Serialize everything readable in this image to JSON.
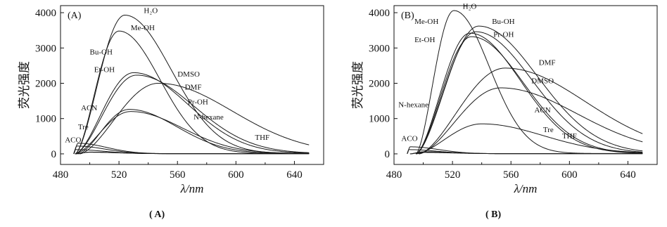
{
  "chart_data": [
    {
      "type": "line",
      "panel_tag": "(A)",
      "caption": "( A)",
      "xlabel": "λ/nm",
      "ylabel": "荧光强度",
      "xlim": [
        480,
        660
      ],
      "ylim": [
        -300,
        4200
      ],
      "xticks": [
        480,
        520,
        560,
        600,
        640
      ],
      "yticks": [
        0,
        1000,
        2000,
        3000,
        4000
      ],
      "series": [
        {
          "name": "H₂O",
          "start": 490,
          "peak_x": 524,
          "peak_y": 3930,
          "end_y": 10
        },
        {
          "name": "Me-OH",
          "start": 490,
          "peak_x": 520,
          "peak_y": 3480,
          "end_y": 10
        },
        {
          "name": "Bu-OH",
          "start": 490,
          "peak_x": 530,
          "peak_y": 2300,
          "end_y": 10
        },
        {
          "name": "Et-OH",
          "start": 490,
          "peak_x": 532,
          "peak_y": 2230,
          "end_y": 10
        },
        {
          "name": "DMSO",
          "start": 493,
          "peak_x": 547,
          "peak_y": 2000,
          "end_y": 10
        },
        {
          "name": "DMF",
          "start": 492,
          "peak_x": 527,
          "peak_y": 1260,
          "end_y": 10
        },
        {
          "name": "Pr-OH",
          "start": 490,
          "peak_x": 528,
          "peak_y": 1200,
          "end_y": 10
        },
        {
          "name": "N-hexane",
          "start": 490,
          "peak_x": 500,
          "peak_y": 50,
          "end_y": 5
        },
        {
          "name": "THF",
          "start": 490,
          "peak_x": 500,
          "peak_y": 45,
          "end_y": 5
        },
        {
          "name": "ACN",
          "start": 489,
          "peak_x": 492,
          "peak_y": 300,
          "end_y": 5
        },
        {
          "name": "Tre",
          "start": 489,
          "peak_x": 491,
          "peak_y": 220,
          "end_y": 5
        },
        {
          "name": "ACO",
          "start": 489,
          "peak_x": 490,
          "peak_y": 120,
          "end_y": 5
        }
      ],
      "labels": [
        {
          "text": "H₂O",
          "x": 537,
          "y": 3990
        },
        {
          "text": "Me-OH",
          "x": 528,
          "y": 3500
        },
        {
          "text": "Bu-OH",
          "x": 500,
          "y": 2820
        },
        {
          "text": "Et-OH",
          "x": 503,
          "y": 2320
        },
        {
          "text": "DMSO",
          "x": 560,
          "y": 2190
        },
        {
          "text": "DMF",
          "x": 565,
          "y": 1820
        },
        {
          "text": "Pr-OH",
          "x": 567,
          "y": 1400
        },
        {
          "text": "N-hexane",
          "x": 571,
          "y": 970
        },
        {
          "text": "THF",
          "x": 613,
          "y": 400
        },
        {
          "text": "ACN",
          "x": 494,
          "y": 1230
        },
        {
          "text": "Tre",
          "x": 492,
          "y": 700
        },
        {
          "text": "ACO",
          "x": 483,
          "y": 330
        }
      ]
    },
    {
      "type": "line",
      "panel_tag": "(B)",
      "caption": "( B)",
      "xlabel": "λ/nm",
      "ylabel": "荧光强度",
      "xlim": [
        480,
        660
      ],
      "ylim": [
        -300,
        4200
      ],
      "xticks": [
        480,
        520,
        560,
        600,
        640
      ],
      "yticks": [
        0,
        1000,
        2000,
        3000,
        4000
      ],
      "series": [
        {
          "name": "H₂O",
          "start": 495,
          "peak_x": 521,
          "peak_y": 4060,
          "end_y": 10
        },
        {
          "name": "Bu-OH",
          "start": 495,
          "peak_x": 538,
          "peak_y": 3620,
          "end_y": 10
        },
        {
          "name": "Me-OH",
          "start": 495,
          "peak_x": 532,
          "peak_y": 3420,
          "end_y": 10
        },
        {
          "name": "Pr-OH",
          "start": 495,
          "peak_x": 536,
          "peak_y": 3460,
          "end_y": 10
        },
        {
          "name": "Et-OH",
          "start": 495,
          "peak_x": 533,
          "peak_y": 3320,
          "end_y": 10
        },
        {
          "name": "DMF",
          "start": 497,
          "peak_x": 556,
          "peak_y": 2430,
          "end_y": 10
        },
        {
          "name": "DMSO",
          "start": 497,
          "peak_x": 553,
          "peak_y": 1870,
          "end_y": 10
        },
        {
          "name": "ACN",
          "start": 495,
          "peak_x": 540,
          "peak_y": 850,
          "end_y": 10
        },
        {
          "name": "Tre",
          "start": 491,
          "peak_x": 500,
          "peak_y": 60,
          "end_y": 5
        },
        {
          "name": "THF",
          "start": 491,
          "peak_x": 500,
          "peak_y": 40,
          "end_y": 5
        },
        {
          "name": "N-hexane",
          "start": 489,
          "peak_x": 491,
          "peak_y": 200,
          "end_y": 5
        },
        {
          "name": "ACO",
          "start": 489,
          "peak_x": 490,
          "peak_y": 120,
          "end_y": 5
        }
      ],
      "labels": [
        {
          "text": "H₂O",
          "x": 527,
          "y": 4110
        },
        {
          "text": "Me-OH",
          "x": 494,
          "y": 3680
        },
        {
          "text": "Bu-OH",
          "x": 547,
          "y": 3680
        },
        {
          "text": "Pr-OH",
          "x": 548,
          "y": 3310
        },
        {
          "text": "Et-OH",
          "x": 494,
          "y": 3160
        },
        {
          "text": "DMF",
          "x": 579,
          "y": 2520
        },
        {
          "text": "DMSO",
          "x": 574,
          "y": 2000
        },
        {
          "text": "ACN",
          "x": 576,
          "y": 1170
        },
        {
          "text": "N-hexane",
          "x": 483,
          "y": 1320
        },
        {
          "text": "Tre",
          "x": 582,
          "y": 620
        },
        {
          "text": "THF",
          "x": 595,
          "y": 440
        },
        {
          "text": "ACO",
          "x": 485,
          "y": 370
        }
      ]
    }
  ]
}
